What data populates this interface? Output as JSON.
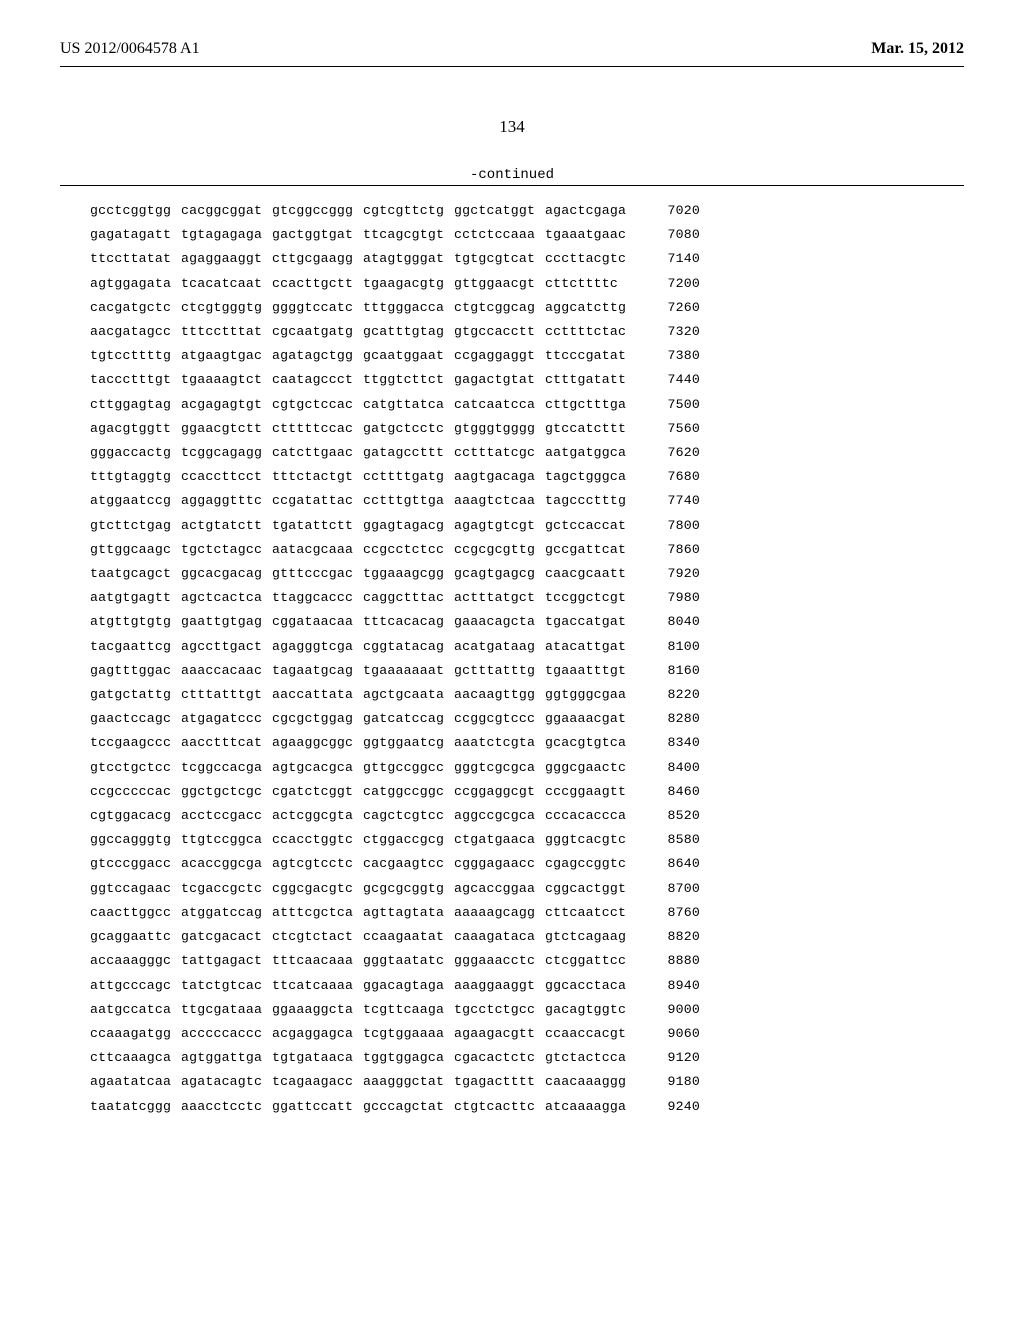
{
  "header": {
    "pub_number": "US 2012/0064578 A1",
    "pub_date": "Mar. 15, 2012"
  },
  "page_number": "134",
  "continued_label": "-continued",
  "sequence": {
    "rows": [
      {
        "groups": [
          "gcctcggtgg",
          "cacggcggat",
          "gtcggccggg",
          "cgtcgttctg",
          "ggctcatggt",
          "agactcgaga"
        ],
        "pos": "7020"
      },
      {
        "groups": [
          "gagatagatt",
          "tgtagagaga",
          "gactggtgat",
          "ttcagcgtgt",
          "cctctccaaa",
          "tgaaatgaac"
        ],
        "pos": "7080"
      },
      {
        "groups": [
          "ttccttatat",
          "agaggaaggt",
          "cttgcgaagg",
          "atagtgggat",
          "tgtgcgtcat",
          "cccttacgtc"
        ],
        "pos": "7140"
      },
      {
        "groups": [
          "agtggagata",
          "tcacatcaat",
          "ccacttgctt",
          "tgaagacgtg",
          "gttggaacgt",
          "cttcttttc"
        ],
        "pos": "7200"
      },
      {
        "groups": [
          "cacgatgctc",
          "ctcgtgggtg",
          "ggggtccatc",
          "tttgggacca",
          "ctgtcggcag",
          "aggcatcttg"
        ],
        "pos": "7260"
      },
      {
        "groups": [
          "aacgatagcc",
          "tttcctttat",
          "cgcaatgatg",
          "gcatttgtag",
          "gtgccacctt",
          "ccttttctac"
        ],
        "pos": "7320"
      },
      {
        "groups": [
          "tgtccttttg",
          "atgaagtgac",
          "agatagctgg",
          "gcaatggaat",
          "ccgaggaggt",
          "ttcccgatat"
        ],
        "pos": "7380"
      },
      {
        "groups": [
          "taccctttgt",
          "tgaaaagtct",
          "caatagccct",
          "ttggtcttct",
          "gagactgtat",
          "ctttgatatt"
        ],
        "pos": "7440"
      },
      {
        "groups": [
          "cttggagtag",
          "acgagagtgt",
          "cgtgctccac",
          "catgttatca",
          "catcaatcca",
          "cttgctttga"
        ],
        "pos": "7500"
      },
      {
        "groups": [
          "agacgtggtt",
          "ggaacgtctt",
          "ctttttccac",
          "gatgctcctc",
          "gtgggtgggg",
          "gtccatcttt"
        ],
        "pos": "7560"
      },
      {
        "groups": [
          "gggaccactg",
          "tcggcagagg",
          "catcttgaac",
          "gatagccttt",
          "cctttatcgc",
          "aatgatggca"
        ],
        "pos": "7620"
      },
      {
        "groups": [
          "tttgtaggtg",
          "ccaccttcct",
          "tttctactgt",
          "ccttttgatg",
          "aagtgacaga",
          "tagctgggca"
        ],
        "pos": "7680"
      },
      {
        "groups": [
          "atggaatccg",
          "aggaggtttc",
          "ccgatattac",
          "cctttgttga",
          "aaagtctcaa",
          "tagccctttg"
        ],
        "pos": "7740"
      },
      {
        "groups": [
          "gtcttctgag",
          "actgtatctt",
          "tgatattctt",
          "ggagtagacg",
          "agagtgtcgt",
          "gctccaccat"
        ],
        "pos": "7800"
      },
      {
        "groups": [
          "gttggcaagc",
          "tgctctagcc",
          "aatacgcaaa",
          "ccgcctctcc",
          "ccgcgcgttg",
          "gccgattcat"
        ],
        "pos": "7860"
      },
      {
        "groups": [
          "taatgcagct",
          "ggcacgacag",
          "gtttcccgac",
          "tggaaagcgg",
          "gcagtgagcg",
          "caacgcaatt"
        ],
        "pos": "7920"
      },
      {
        "groups": [
          "aatgtgagtt",
          "agctcactca",
          "ttaggcaccc",
          "caggctttac",
          "actttatgct",
          "tccggctcgt"
        ],
        "pos": "7980"
      },
      {
        "groups": [
          "atgttgtgtg",
          "gaattgtgag",
          "cggataacaa",
          "tttcacacag",
          "gaaacagcta",
          "tgaccatgat"
        ],
        "pos": "8040"
      },
      {
        "groups": [
          "tacgaattcg",
          "agccttgact",
          "agagggtcga",
          "cggtatacag",
          "acatgataag",
          "atacattgat"
        ],
        "pos": "8100"
      },
      {
        "groups": [
          "gagtttggac",
          "aaaccacaac",
          "tagaatgcag",
          "tgaaaaaaat",
          "gctttatttg",
          "tgaaatttgt"
        ],
        "pos": "8160"
      },
      {
        "groups": [
          "gatgctattg",
          "ctttatttgt",
          "aaccattata",
          "agctgcaata",
          "aacaagttgg",
          "ggtgggcgaa"
        ],
        "pos": "8220"
      },
      {
        "groups": [
          "gaactccagc",
          "atgagatccc",
          "cgcgctggag",
          "gatcatccag",
          "ccggcgtccc",
          "ggaaaacgat"
        ],
        "pos": "8280"
      },
      {
        "groups": [
          "tccgaagccc",
          "aacctttcat",
          "agaaggcggc",
          "ggtggaatcg",
          "aaatctcgta",
          "gcacgtgtca"
        ],
        "pos": "8340"
      },
      {
        "groups": [
          "gtcctgctcc",
          "tcggccacga",
          "agtgcacgca",
          "gttgccggcc",
          "gggtcgcgca",
          "gggcgaactc"
        ],
        "pos": "8400"
      },
      {
        "groups": [
          "ccgcccccac",
          "ggctgctcgc",
          "cgatctcggt",
          "catggccggc",
          "ccggaggcgt",
          "cccggaagtt"
        ],
        "pos": "8460"
      },
      {
        "groups": [
          "cgtggacacg",
          "acctccgacc",
          "actcggcgta",
          "cagctcgtcc",
          "aggccgcgca",
          "cccacaccca"
        ],
        "pos": "8520"
      },
      {
        "groups": [
          "ggccagggtg",
          "ttgtccggca",
          "ccacctggtc",
          "ctggaccgcg",
          "ctgatgaaca",
          "gggtcacgtc"
        ],
        "pos": "8580"
      },
      {
        "groups": [
          "gtcccggacc",
          "acaccggcga",
          "agtcgtcctc",
          "cacgaagtcc",
          "cgggagaacc",
          "cgagccggtc"
        ],
        "pos": "8640"
      },
      {
        "groups": [
          "ggtccagaac",
          "tcgaccgctc",
          "cggcgacgtc",
          "gcgcgcggtg",
          "agcaccggaa",
          "cggcactggt"
        ],
        "pos": "8700"
      },
      {
        "groups": [
          "caacttggcc",
          "atggatccag",
          "atttcgctca",
          "agttagtata",
          "aaaaagcagg",
          "cttcaatcct"
        ],
        "pos": "8760"
      },
      {
        "groups": [
          "gcaggaattc",
          "gatcgacact",
          "ctcgtctact",
          "ccaagaatat",
          "caaagataca",
          "gtctcagaag"
        ],
        "pos": "8820"
      },
      {
        "groups": [
          "accaaagggc",
          "tattgagact",
          "tttcaacaaa",
          "gggtaatatc",
          "gggaaacctc",
          "ctcggattcc"
        ],
        "pos": "8880"
      },
      {
        "groups": [
          "attgcccagc",
          "tatctgtcac",
          "ttcatcaaaa",
          "ggacagtaga",
          "aaaggaaggt",
          "ggcacctaca"
        ],
        "pos": "8940"
      },
      {
        "groups": [
          "aatgccatca",
          "ttgcgataaa",
          "ggaaaggcta",
          "tcgttcaaga",
          "tgcctctgcc",
          "gacagtggtc"
        ],
        "pos": "9000"
      },
      {
        "groups": [
          "ccaaagatgg",
          "acccccaccc",
          "acgaggagca",
          "tcgtggaaaa",
          "agaagacgtt",
          "ccaaccacgt"
        ],
        "pos": "9060"
      },
      {
        "groups": [
          "cttcaaagca",
          "agtggattga",
          "tgtgataaca",
          "tggtggagca",
          "cgacactctc",
          "gtctactcca"
        ],
        "pos": "9120"
      },
      {
        "groups": [
          "agaatatcaa",
          "agatacagtc",
          "tcagaagacc",
          "aaagggctat",
          "tgagactttt",
          "caacaaaggg"
        ],
        "pos": "9180"
      },
      {
        "groups": [
          "taatatcggg",
          "aaacctcctc",
          "ggattccatt",
          "gcccagctat",
          "ctgtcacttc",
          "atcaaaagga"
        ],
        "pos": "9240"
      }
    ]
  }
}
